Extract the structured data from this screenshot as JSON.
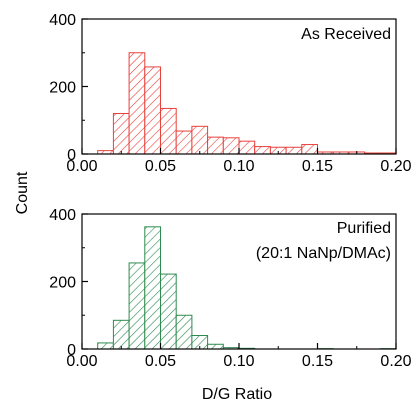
{
  "figure": {
    "ylabel": "Count",
    "xlabel": "D/G Ratio"
  },
  "chart_data": [
    {
      "type": "bar",
      "subtype": "histogram",
      "annotation": [
        "As Received"
      ],
      "color": "#e8413c",
      "hatch": "diagonal",
      "xlim": [
        0.0,
        0.2
      ],
      "ylim": [
        0,
        400
      ],
      "xticks": [
        "0.00",
        "0.05",
        "0.10",
        "0.15",
        "0.20"
      ],
      "yticks": [
        "0",
        "200",
        "400"
      ],
      "bin_width": 0.01,
      "bin_starts": [
        0.01,
        0.02,
        0.03,
        0.04,
        0.05,
        0.06,
        0.07,
        0.08,
        0.09,
        0.1,
        0.11,
        0.12,
        0.13,
        0.14,
        0.15,
        0.16,
        0.17,
        0.18,
        0.19
      ],
      "values": [
        10,
        120,
        300,
        258,
        135,
        68,
        82,
        50,
        48,
        38,
        22,
        20,
        20,
        28,
        6,
        6,
        6,
        3,
        3
      ]
    },
    {
      "type": "bar",
      "subtype": "histogram",
      "annotation": [
        "Purified",
        "(20:1 NaNp/DMAc)"
      ],
      "color": "#2e8b4e",
      "hatch": "diagonal",
      "xlim": [
        0.0,
        0.2
      ],
      "ylim": [
        0,
        400
      ],
      "xticks": [
        "0.00",
        "0.05",
        "0.10",
        "0.15",
        "0.20"
      ],
      "yticks": [
        "0",
        "200",
        "400"
      ],
      "bin_width": 0.01,
      "bin_starts": [
        0.01,
        0.02,
        0.03,
        0.04,
        0.05,
        0.06,
        0.07,
        0.08,
        0.09,
        0.1,
        0.11,
        0.12,
        0.13,
        0.14,
        0.15,
        0.16,
        0.17,
        0.18,
        0.19
      ],
      "values": [
        18,
        85,
        255,
        362,
        222,
        100,
        40,
        14,
        4,
        2,
        0,
        0,
        0,
        0,
        1,
        0,
        0,
        0,
        1
      ]
    }
  ]
}
